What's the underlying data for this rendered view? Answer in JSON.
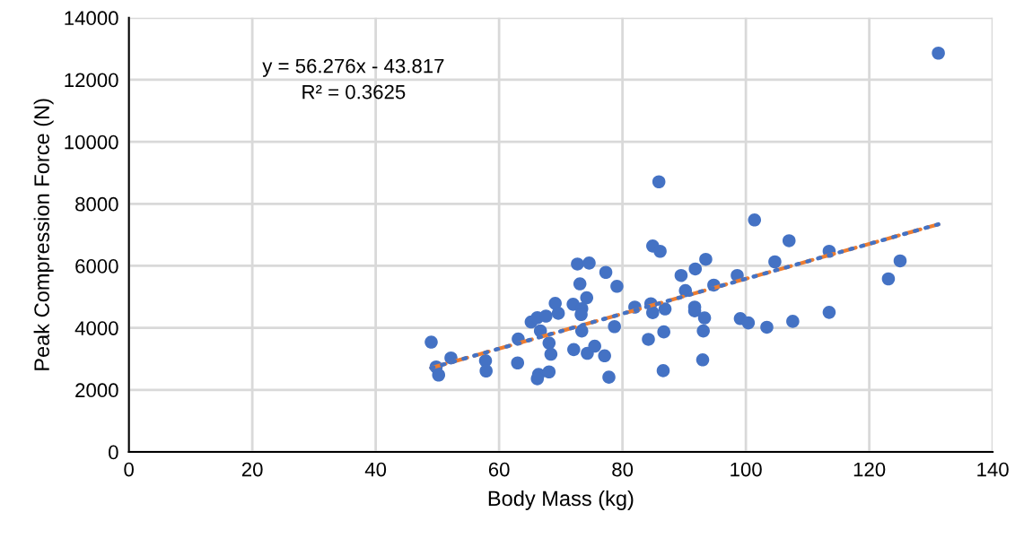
{
  "chart_data": {
    "type": "scatter",
    "xlabel": "Body Mass (kg)",
    "ylabel": "Peak Compression Force (N)",
    "xlim": [
      0,
      140
    ],
    "xticks": [
      0,
      20,
      40,
      60,
      80,
      100,
      120,
      140
    ],
    "ylim": [
      0,
      14000
    ],
    "yticks": [
      0,
      2000,
      4000,
      6000,
      8000,
      10000,
      12000,
      14000
    ],
    "grid": true,
    "annotations": [
      "y = 56.276x - 43.817",
      "R² = 0.3625"
    ],
    "series": [
      {
        "color": "#4472c4",
        "marker": "circle",
        "x": [
          49.0,
          49.8,
          50.2,
          52.2,
          57.8,
          57.9,
          63.0,
          63.1,
          65.2,
          66.2,
          67.6,
          66.7,
          66.4,
          66.2,
          68.1,
          68.1,
          68.4,
          69.1,
          69.6,
          72.0,
          72.7,
          74.6,
          73.1,
          74.2,
          73.4,
          73.3,
          73.4,
          72.1,
          74.3,
          75.5,
          77.1,
          77.8,
          77.3,
          79.1,
          78.7,
          82.0,
          85.9,
          84.9,
          86.1,
          93.5,
          91.8,
          89.5,
          90.2,
          94.8,
          98.6,
          101.4,
          107.0,
          104.7,
          113.5,
          84.6,
          84.9,
          86.9,
          91.7,
          91.7,
          93.3,
          93.1,
          86.7,
          84.2,
          86.6,
          93.0,
          99.1,
          100.4,
          103.4,
          107.6,
          113.5,
          123.1,
          125.0,
          131.2
        ],
        "values": [
          3540,
          2740,
          2480,
          3030,
          2940,
          2610,
          2870,
          3640,
          4190,
          4330,
          4380,
          3900,
          2500,
          2360,
          2580,
          3510,
          3150,
          4790,
          4470,
          4760,
          6060,
          6090,
          5420,
          4970,
          4620,
          4430,
          3900,
          3300,
          3180,
          3410,
          3100,
          2410,
          5790,
          5340,
          4040,
          4670,
          8710,
          6640,
          6470,
          6210,
          5900,
          5690,
          5200,
          5380,
          5690,
          7480,
          6810,
          6130,
          6470,
          4780,
          4490,
          4610,
          4670,
          4550,
          4320,
          3900,
          3870,
          3630,
          2620,
          2970,
          4300,
          4160,
          4020,
          4210,
          4500,
          5580,
          6160,
          12860
        ]
      },
      {
        "type": "line",
        "color": "#ed7d31",
        "line_style": "dashed",
        "marker": "none",
        "x": [
          49.0,
          131.2
        ],
        "values": [
          2710,
          7340
        ]
      },
      {
        "type": "line",
        "color": "#4472c4",
        "line_style": "dotted",
        "marker": "none",
        "x": [
          49.0,
          131.2
        ],
        "values": [
          2710,
          7340
        ]
      }
    ]
  }
}
